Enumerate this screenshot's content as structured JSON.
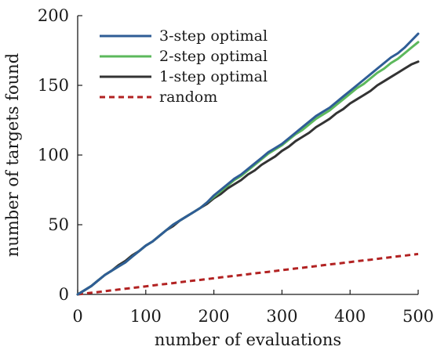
{
  "chart_data": {
    "type": "line",
    "xlabel": "number of evaluations",
    "ylabel": "number of targets found",
    "xlim": [
      0,
      500
    ],
    "ylim": [
      0,
      200
    ],
    "xticks": [
      0,
      100,
      200,
      300,
      400,
      500
    ],
    "yticks": [
      0,
      50,
      100,
      150,
      200
    ],
    "grid": false,
    "legend_position": "top-left",
    "x": [
      0,
      10,
      20,
      30,
      40,
      50,
      60,
      70,
      80,
      90,
      100,
      110,
      120,
      130,
      140,
      150,
      160,
      170,
      180,
      190,
      200,
      210,
      220,
      230,
      240,
      250,
      260,
      270,
      280,
      290,
      300,
      310,
      320,
      330,
      340,
      350,
      360,
      370,
      380,
      390,
      400,
      410,
      420,
      430,
      440,
      450,
      460,
      470,
      480,
      490,
      500
    ],
    "series": [
      {
        "name": "3-step optimal",
        "color": "#2f5d96",
        "dash": "solid",
        "values": [
          0,
          3,
          6,
          10,
          14,
          17,
          20,
          23,
          27,
          31,
          35,
          38,
          42,
          46,
          50,
          53,
          56,
          59,
          62,
          66,
          71,
          75,
          79,
          83,
          86,
          90,
          94,
          98,
          102,
          105,
          108,
          112,
          116,
          120,
          124,
          128,
          131,
          134,
          138,
          142,
          146,
          150,
          154,
          158,
          162,
          166,
          170,
          173,
          177,
          182,
          187
        ]
      },
      {
        "name": "2-step optimal",
        "color": "#5cb85c",
        "dash": "solid",
        "values": [
          0,
          3,
          6,
          10,
          14,
          17,
          20,
          23,
          27,
          31,
          35,
          38,
          42,
          46,
          50,
          53,
          56,
          59,
          62,
          66,
          70,
          74,
          78,
          82,
          85,
          89,
          93,
          97,
          101,
          104,
          107,
          111,
          115,
          118,
          122,
          126,
          129,
          132,
          136,
          140,
          144,
          148,
          151,
          155,
          159,
          162,
          166,
          169,
          173,
          177,
          181
        ]
      },
      {
        "name": "1-step optimal",
        "color": "#333333",
        "dash": "solid",
        "values": [
          0,
          3,
          6,
          10,
          14,
          17,
          21,
          24,
          28,
          31,
          35,
          38,
          42,
          46,
          49,
          53,
          56,
          59,
          62,
          65,
          69,
          72,
          76,
          79,
          82,
          86,
          89,
          93,
          96,
          99,
          103,
          106,
          110,
          113,
          116,
          120,
          123,
          126,
          130,
          133,
          137,
          140,
          143,
          146,
          150,
          153,
          156,
          159,
          162,
          165,
          167
        ]
      },
      {
        "name": "random",
        "color": "#b22222",
        "dash": "dashed",
        "values": [
          0,
          0.6,
          1.2,
          1.7,
          2.3,
          2.9,
          3.5,
          4.1,
          4.6,
          5.2,
          5.8,
          6.4,
          7.0,
          7.5,
          8.1,
          8.7,
          9.3,
          9.9,
          10.4,
          11.0,
          11.6,
          12.2,
          12.8,
          13.3,
          13.9,
          14.5,
          15.1,
          15.7,
          16.2,
          16.8,
          17.4,
          18.0,
          18.6,
          19.1,
          19.7,
          20.3,
          20.9,
          21.5,
          22.0,
          22.6,
          23.2,
          23.8,
          24.4,
          24.9,
          25.5,
          26.1,
          26.7,
          27.3,
          27.8,
          28.4,
          29.0
        ]
      }
    ]
  }
}
